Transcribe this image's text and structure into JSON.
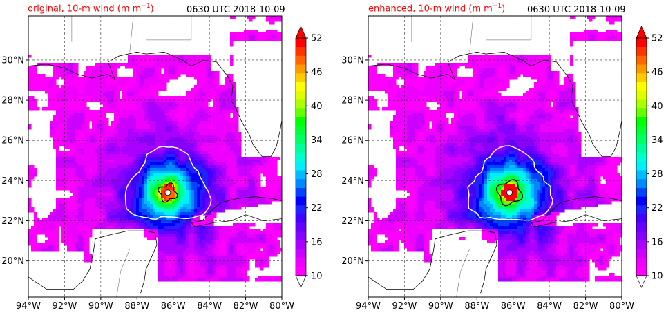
{
  "chart_data": [
    {
      "type": "heatmap",
      "title_left": "original, 10-m wind (m m",
      "title_left_sup": "−1",
      "title_left_close": ")",
      "title_right": "0630 UTC 2018-10-09",
      "x_ticks": [
        "94°W",
        "92°W",
        "90°W",
        "88°W",
        "86°W",
        "84°W",
        "82°W",
        "80°W"
      ],
      "y_ticks": [
        "30°N",
        "28°N",
        "26°N",
        "24°N",
        "22°N",
        "20°N"
      ],
      "colorbar_ticks": [
        "52",
        "46",
        "40",
        "34",
        "28",
        "22",
        "16",
        "10"
      ],
      "colorbar_range": [
        10,
        52
      ],
      "eye": {
        "lon": -86.3,
        "lat": 23.4
      },
      "grid": true
    },
    {
      "type": "heatmap",
      "title_left": "enhanced, 10-m wind (m m",
      "title_left_sup": "−1",
      "title_left_close": ")",
      "title_right": "0630 UTC 2018-10-09",
      "x_ticks": [
        "94°W",
        "92°W",
        "90°W",
        "88°W",
        "86°W",
        "84°W",
        "82°W",
        "80°W"
      ],
      "y_ticks": [
        "30°N",
        "28°N",
        "26°N",
        "24°N",
        "22°N",
        "20°N"
      ],
      "colorbar_ticks": [
        "52",
        "46",
        "40",
        "34",
        "28",
        "22",
        "16",
        "10"
      ],
      "colorbar_range": [
        10,
        52
      ],
      "eye": {
        "lon": -86.2,
        "lat": 23.4
      },
      "grid": true
    }
  ],
  "colors": {
    "scale": [
      "#ff00ff",
      "#ee00ff",
      "#cc00ff",
      "#aa00ff",
      "#8800ff",
      "#6600ff",
      "#4400ff",
      "#2222ff",
      "#0000ff",
      "#0044ff",
      "#0088ff",
      "#00bbff",
      "#00eeff",
      "#00ffcc",
      "#00ff99",
      "#00ff66",
      "#00ff33",
      "#00ff00",
      "#66ff00",
      "#aaff00",
      "#ddff00",
      "#ffff00",
      "#ffcc00",
      "#ff9900",
      "#ff6600",
      "#ff3300",
      "#ff0000"
    ]
  }
}
